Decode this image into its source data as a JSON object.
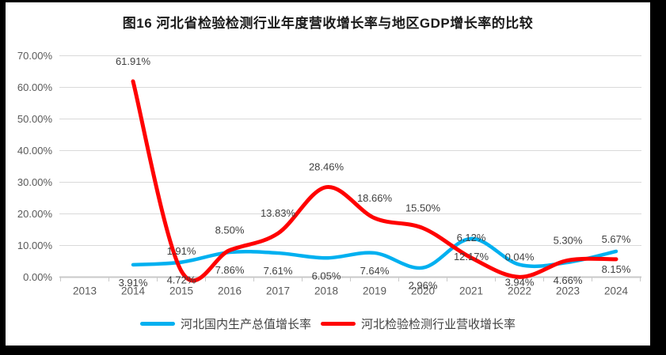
{
  "colors": {
    "frame": "#000000",
    "page_background": "#FFFFFF",
    "gridline": "#D9D9D9",
    "axis_line": "#C9C9C9",
    "axis_text": "#595959",
    "data_label_text": "#404040",
    "gdp_series": "#00B0F0",
    "industry_series": "#FF0000"
  },
  "chart_data": {
    "type": "line",
    "title": "图16 河北省检验检测行业年度营收增长率与地区GDP增长率的比较",
    "xlabel": "",
    "ylabel": "",
    "categories": [
      "2013",
      "2014",
      "2015",
      "2016",
      "2017",
      "2018",
      "2019",
      "2020",
      "2021",
      "2022",
      "2023",
      "2024"
    ],
    "y_axis": {
      "min": 0,
      "max": 70,
      "step": 10,
      "tick_labels": [
        "0.00%",
        "10.00%",
        "20.00%",
        "30.00%",
        "40.00%",
        "50.00%",
        "60.00%",
        "70.00%"
      ]
    },
    "grid": true,
    "smoothed_lines": true,
    "legend_position": "bottom",
    "series": [
      {
        "name": "河北国内生产总值增长率",
        "color": "#00B0F0",
        "line_width": 4.5,
        "label_position": "below",
        "values": [
          null,
          3.91,
          4.72,
          7.86,
          7.61,
          6.05,
          7.64,
          2.96,
          12.17,
          3.94,
          4.66,
          8.15
        ],
        "labels": [
          null,
          "3.91%",
          "4.72%",
          "7.86%",
          "7.61%",
          "6.05%",
          "7.64%",
          "2.96%",
          "12.17%",
          "3.94%",
          "4.66%",
          "8.15%"
        ]
      },
      {
        "name": "河北检验检测行业营收增长率",
        "color": "#FF0000",
        "line_width": 5,
        "label_position": "above",
        "values": [
          null,
          61.91,
          1.91,
          8.5,
          13.83,
          28.46,
          18.66,
          15.5,
          6.12,
          0.04,
          5.3,
          5.67
        ],
        "labels": [
          null,
          "61.91%",
          "1.91%",
          "8.50%",
          "13.83%",
          "28.46%",
          "18.66%",
          "15.50%",
          "6.12%",
          "0.04%",
          "5.30%",
          "5.67%"
        ]
      }
    ]
  }
}
